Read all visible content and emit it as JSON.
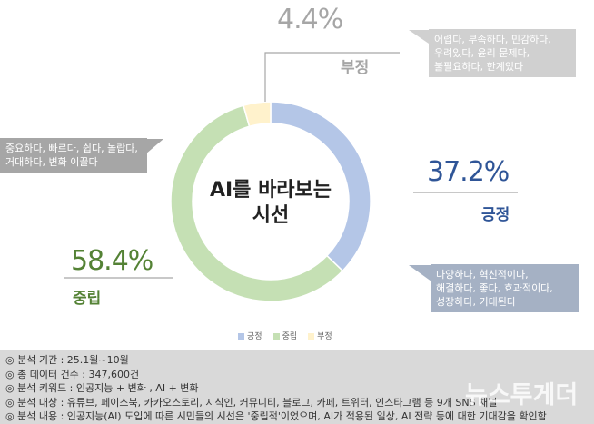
{
  "chart_data": {
    "type": "pie",
    "title": "AI를 바라보는 시선",
    "categories": [
      "긍정",
      "중립",
      "부정"
    ],
    "values": [
      37.2,
      58.4,
      4.4
    ],
    "labels": [
      "37.2%",
      "58.4%",
      "4.4%"
    ],
    "colors": [
      "#b4c6e7",
      "#c5e0b4",
      "#fff2cc"
    ],
    "label_colors": [
      "#2f5597",
      "#548235",
      "#a6a6a6"
    ],
    "donut": true,
    "legend": "bottom"
  },
  "title_line1": "AI를 바라보는",
  "title_line2": "시선",
  "bubbles": {
    "negative": [
      "어렵다, 부족하다, 민감하다,",
      "우려있다, 윤리 문제다,",
      "불필요하다, 한계있다"
    ],
    "neutral": [
      "중요하다, 빠르다, 쉽다, 놀랍다,",
      "거대하다, 변화 이끌다"
    ],
    "positive": [
      "다양하다, 혁신적이다,",
      "해결하다, 좋다, 효과적이다,",
      "성장하다, 기대된다"
    ]
  },
  "footer": [
    "◎ 분석 기간 : 25.1월~10월",
    "◎ 총 데이터 건수 : 347,600건",
    "◎ 분석 키워드 : 인공지능 + 변화 , AI + 변화",
    "◎ 분석 대상 : 유튜브, 페이스북, 카카오스토리, 지식인, 커뮤니티, 블로그, 카페, 트위터, 인스타그램 등 9개 SNS 채널",
    "◎ 분석 내용 : 인공지능(AI) 도입에 따른 시민들의 시선은 '중립적'이었으며, AI가 적용된 일상, AI 전략 등에 대한 기대감을 확인함"
  ],
  "watermark": "뉴스투게더"
}
